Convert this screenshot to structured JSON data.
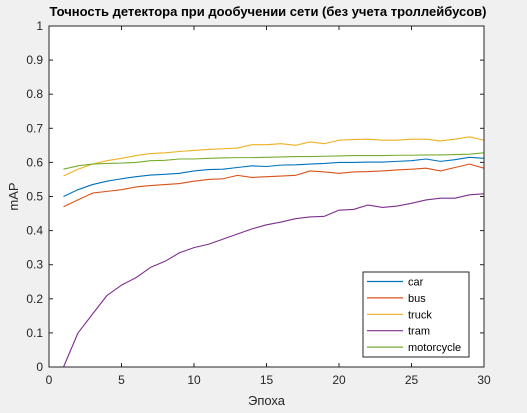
{
  "chart_data": {
    "type": "line",
    "title": "Точность детектора при дообучении сети (без учета троллейбусов)",
    "xlabel": "Эпоха",
    "ylabel": "mAP",
    "xlim": [
      0,
      30
    ],
    "ylim": [
      0,
      1
    ],
    "xticks": [
      0,
      5,
      10,
      15,
      20,
      25,
      30
    ],
    "yticks": [
      0,
      0.1,
      0.2,
      0.3,
      0.4,
      0.5,
      0.6,
      0.7,
      0.8,
      0.9,
      1
    ],
    "ytick_labels": [
      "0",
      "0.1",
      "0.2",
      "0.3",
      "0.4",
      "0.5",
      "0.6",
      "0.7",
      "0.8",
      "0.9",
      "1"
    ],
    "grid": false,
    "legend_position": "bottom-right",
    "x": [
      1,
      2,
      3,
      4,
      5,
      6,
      7,
      8,
      9,
      10,
      11,
      12,
      13,
      14,
      15,
      16,
      17,
      18,
      19,
      20,
      21,
      22,
      23,
      24,
      25,
      26,
      27,
      28,
      29,
      30
    ],
    "series": [
      {
        "name": "car",
        "color": "#0072bd",
        "values": [
          0.5,
          0.52,
          0.535,
          0.545,
          0.552,
          0.558,
          0.563,
          0.565,
          0.568,
          0.575,
          0.579,
          0.58,
          0.585,
          0.59,
          0.588,
          0.592,
          0.593,
          0.595,
          0.597,
          0.6,
          0.6,
          0.601,
          0.601,
          0.603,
          0.605,
          0.61,
          0.603,
          0.608,
          0.615,
          0.612
        ]
      },
      {
        "name": "bus",
        "color": "#d95319",
        "values": [
          0.47,
          0.49,
          0.51,
          0.515,
          0.52,
          0.528,
          0.532,
          0.535,
          0.538,
          0.545,
          0.55,
          0.552,
          0.562,
          0.556,
          0.558,
          0.56,
          0.562,
          0.575,
          0.572,
          0.568,
          0.572,
          0.573,
          0.575,
          0.578,
          0.58,
          0.583,
          0.575,
          0.585,
          0.595,
          0.583
        ]
      },
      {
        "name": "truck",
        "color": "#edb120",
        "values": [
          0.56,
          0.58,
          0.595,
          0.605,
          0.612,
          0.62,
          0.626,
          0.628,
          0.632,
          0.635,
          0.638,
          0.64,
          0.642,
          0.652,
          0.652,
          0.655,
          0.65,
          0.66,
          0.655,
          0.665,
          0.667,
          0.668,
          0.665,
          0.665,
          0.668,
          0.668,
          0.663,
          0.668,
          0.675,
          0.665
        ]
      },
      {
        "name": "tram",
        "color": "#7e2f8e",
        "values": [
          0.0,
          0.1,
          0.155,
          0.21,
          0.24,
          0.262,
          0.292,
          0.31,
          0.335,
          0.35,
          0.36,
          0.375,
          0.39,
          0.405,
          0.417,
          0.425,
          0.435,
          0.44,
          0.442,
          0.46,
          0.462,
          0.475,
          0.468,
          0.472,
          0.48,
          0.49,
          0.495,
          0.495,
          0.505,
          0.508
        ]
      },
      {
        "name": "motorcycle",
        "color": "#77ac30",
        "values": [
          0.58,
          0.59,
          0.595,
          0.597,
          0.598,
          0.6,
          0.605,
          0.606,
          0.61,
          0.61,
          0.612,
          0.613,
          0.614,
          0.614,
          0.615,
          0.616,
          0.617,
          0.617,
          0.618,
          0.619,
          0.62,
          0.62,
          0.62,
          0.621,
          0.621,
          0.622,
          0.622,
          0.623,
          0.624,
          0.628
        ]
      }
    ]
  }
}
